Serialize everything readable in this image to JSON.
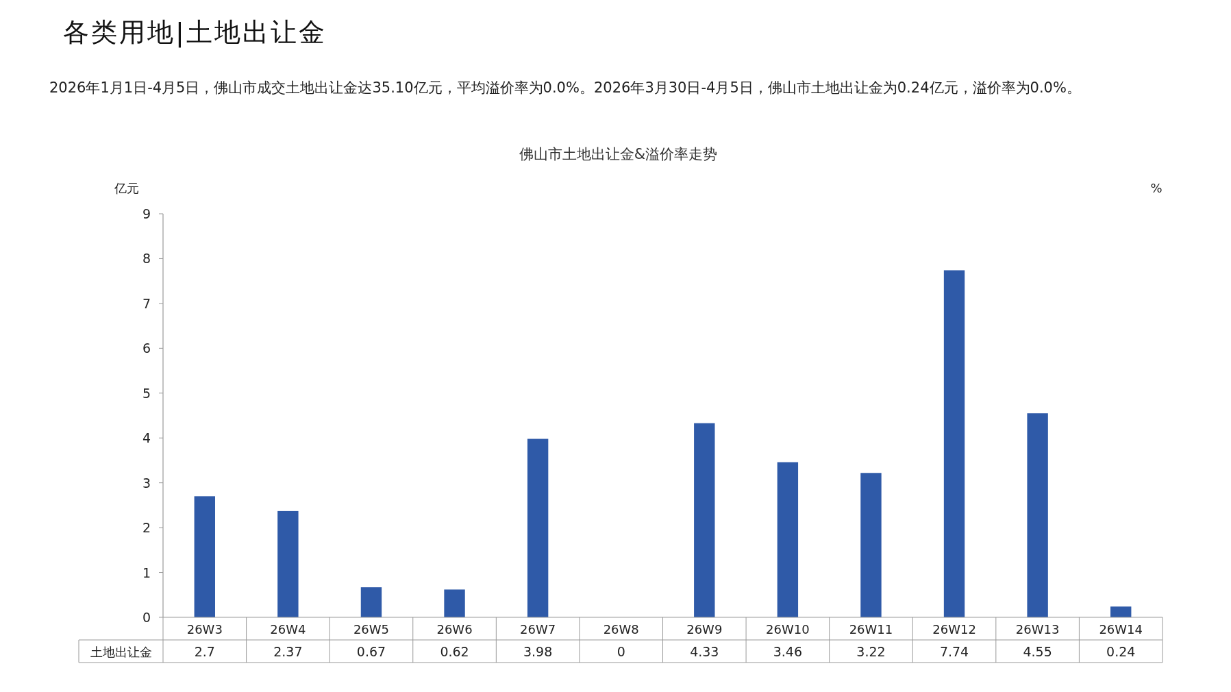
{
  "chart_data": {
    "type": "bar",
    "title": "各类用地|土地出让金",
    "subtitle": "佛山市土地出让金&溢价率走势",
    "annotations": [
      "2026年1月1日-4月5日，佛山市成交土地出让金达35.10亿元，平均溢价率为0.0%。2026年3月30日-4月5日，佛山市土地出让金为0.24亿元，溢价率为0.0%。"
    ],
    "ylabel": "亿元",
    "y2label": "%",
    "categories": [
      "26W3",
      "26W4",
      "26W5",
      "26W6",
      "26W7",
      "26W8",
      "26W9",
      "26W10",
      "26W11",
      "26W12",
      "26W13",
      "26W14"
    ],
    "series": [
      {
        "name": "土地出让金",
        "color": "#2f5aa8",
        "values": [
          2.7,
          2.37,
          0.67,
          0.62,
          3.98,
          0,
          4.33,
          3.46,
          3.22,
          7.74,
          4.55,
          0.24
        ]
      }
    ],
    "ylim": [
      0,
      9
    ],
    "yticks": [
      0,
      1,
      2,
      3,
      4,
      5,
      6,
      7,
      8,
      9
    ],
    "data_labels": true
  }
}
